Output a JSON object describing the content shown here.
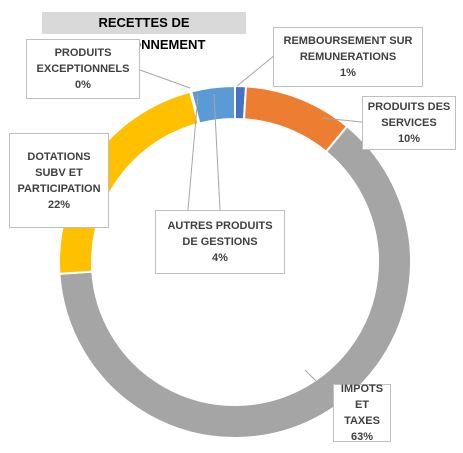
{
  "chart_data": {
    "type": "donut",
    "title": "RECETTES DE FONCTIONNEMENT",
    "slices": [
      {
        "label": "REMBOURSEMENT SUR\nREMUNERATIONS",
        "value": 1,
        "value_label": "1%",
        "color": "#4472C4"
      },
      {
        "label": "PRODUITS DES\nSERVICES",
        "value": 10,
        "value_label": "10%",
        "color": "#ED7D31"
      },
      {
        "label": "IMPOTS ET\nTAXES",
        "value": 63,
        "value_label": "63%",
        "color": "#A5A5A5"
      },
      {
        "label": "DOTATIONS\nSUBV ET\nPARTICIPATION",
        "value": 22,
        "value_label": "22%",
        "color": "#FFC000"
      },
      {
        "label": "PRODUITS\nEXCEPTIONNELS",
        "value": 0,
        "value_label": "0%",
        "color": "#264478"
      },
      {
        "label": "AUTRES PRODUITS\nDE GESTIONS",
        "value": 4,
        "value_label": "4%",
        "color": "#5B9BD5"
      }
    ],
    "start_angle_deg": 0,
    "direction": "clockwise",
    "legend": "none"
  }
}
